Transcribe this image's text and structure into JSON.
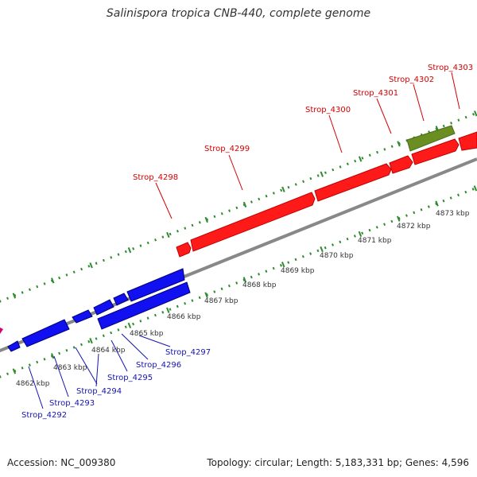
{
  "title": "Salinispora tropica CNB-440, complete genome",
  "accession_text": "Accession: NC_009380",
  "summary_text": "Topology: circular; Length: 5,183,331 bp; Genes: 4,596",
  "colors": {
    "forward_gene": "#ff0000",
    "forward_label": "#d40000",
    "reverse_gene": "#1010f0",
    "reverse_label": "#1414b4",
    "other_feature": "#6b8e23",
    "backbone": "#888888",
    "ticks": "#2e8b2e",
    "offscreen_feature": "#d6006e"
  },
  "scale": {
    "labels": [
      "4862 kbp",
      "4863 kbp",
      "4864 kbp",
      "4865 kbp",
      "4866 kbp",
      "4867 kbp",
      "4868 kbp",
      "4869 kbp",
      "4870 kbp",
      "4871 kbp",
      "4872 kbp",
      "4873 kbp"
    ]
  },
  "features": {
    "forward": [
      "Strop_4298",
      "Strop_4299",
      "Strop_4300",
      "Strop_4301",
      "Strop_4302",
      "Strop_4303"
    ],
    "reverse": [
      "Strop_4292",
      "Strop_4293",
      "Strop_4294",
      "Strop_4295",
      "Strop_4296",
      "Strop_4297"
    ]
  }
}
